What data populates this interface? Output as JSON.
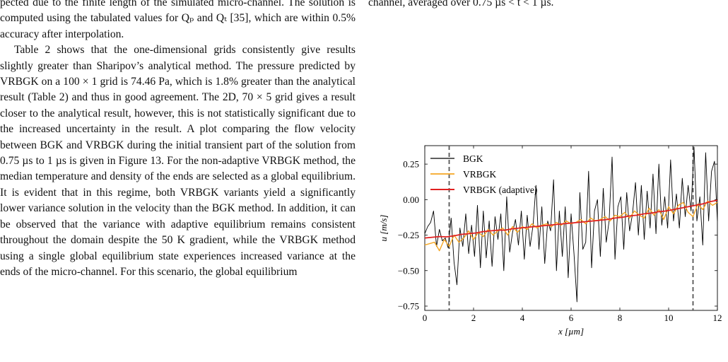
{
  "left_paragraphs": [
    "pected due to the finite length of the simulated micro-channel. The solution is computed using the tabulated values for Qₚ and Qₜ [35], which are within 0.5% accuracy after interpolation.",
    "Table 2 shows that the one-dimensional grids consistently give results slightly greater than Sharipov’s analytical method. The pressure predicted by VRBGK on a 100 × 1 grid is 74.46 Pa, which is 1.8% greater than the analytical result (Table 2) and thus in good agreement. The 2D, 70 × 5 grid gives a result closer to the analytical result, however, this is not statistically significant due to the increased uncertainty in the result. A plot comparing the flow velocity between BGK and VRBGK during the initial transient part of the solution from 0.75 µs to 1 µs is given in Figure 13. For the non-adaptive VRBGK method, the median temperature and density of the ends are selected as a global equilibrium. It is evident that in this regime, both VRBGK variants yield a significantly lower variance solution in the velocity than the BGK method. In addition, it can be observed that the variance with adaptive equilibrium remains consistent throughout the domain despite the 50 K gradient, while the VRBGK method using a single global equilibrium state experiences increased variance at the ends of the micro-channel. For this scenario, the global equilibrium"
  ],
  "right_caption_tail": "channel, averaged over 0.75 µs < t < 1 µs.",
  "chart_data": {
    "type": "line",
    "xlabel": "x [µm]",
    "ylabel": "u [m/s]",
    "xlim": [
      0,
      12
    ],
    "ylim": [
      -0.78,
      0.38
    ],
    "x_ticks": [
      "0",
      "2",
      "4",
      "6",
      "8",
      "10",
      "12"
    ],
    "y_ticks": [
      "0.25",
      "0.00",
      "−0.25",
      "−0.50",
      "−0.75"
    ],
    "vlines": [
      1,
      11
    ],
    "legend": "top-left",
    "series": [
      {
        "name": "BGK",
        "color": "#000000",
        "x": [
          0,
          0.12,
          0.24,
          0.36,
          0.48,
          0.6,
          0.72,
          0.84,
          0.96,
          1.08,
          1.2,
          1.32,
          1.44,
          1.56,
          1.68,
          1.8,
          1.92,
          2.04,
          2.16,
          2.28,
          2.4,
          2.52,
          2.64,
          2.76,
          2.88,
          3.0,
          3.12,
          3.24,
          3.36,
          3.48,
          3.6,
          3.72,
          3.84,
          3.96,
          4.08,
          4.2,
          4.32,
          4.44,
          4.56,
          4.68,
          4.8,
          4.92,
          5.04,
          5.16,
          5.28,
          5.4,
          5.52,
          5.64,
          5.76,
          5.88,
          6.0,
          6.12,
          6.24,
          6.36,
          6.48,
          6.6,
          6.72,
          6.84,
          6.96,
          7.08,
          7.2,
          7.32,
          7.44,
          7.56,
          7.68,
          7.8,
          7.92,
          8.04,
          8.16,
          8.28,
          8.4,
          8.52,
          8.64,
          8.76,
          8.88,
          9.0,
          9.12,
          9.24,
          9.36,
          9.48,
          9.6,
          9.72,
          9.84,
          9.96,
          10.08,
          10.2,
          10.32,
          10.44,
          10.56,
          10.68,
          10.8,
          10.92,
          11.04,
          11.16,
          11.28,
          11.4,
          11.52,
          11.64,
          11.76,
          11.88,
          12.0
        ],
        "values": [
          -0.24,
          -0.19,
          -0.16,
          -0.08,
          -0.33,
          -0.21,
          -0.29,
          -0.27,
          -0.34,
          -0.13,
          -0.44,
          -0.6,
          -0.2,
          -0.33,
          -0.1,
          -0.38,
          -0.18,
          -0.4,
          -0.04,
          -0.48,
          -0.08,
          -0.41,
          -0.15,
          -0.47,
          -0.12,
          -0.28,
          -0.1,
          -0.5,
          0.02,
          -0.37,
          -0.23,
          -0.14,
          -0.32,
          -0.08,
          -0.42,
          -0.11,
          -0.33,
          -0.18,
          0.1,
          -0.35,
          -0.05,
          -0.45,
          -0.15,
          -0.22,
          0.14,
          -0.5,
          -0.08,
          -0.4,
          -0.05,
          -0.55,
          -0.1,
          -0.38,
          -0.72,
          0.05,
          -0.35,
          -0.3,
          0.2,
          -0.48,
          -0.08,
          0.0,
          -0.4,
          0.08,
          -0.3,
          -0.15,
          0.3,
          -0.42,
          -0.05,
          0.02,
          -0.35,
          0.05,
          -0.22,
          -0.1,
          0.12,
          -0.25,
          0.1,
          -0.28,
          0.06,
          -0.2,
          0.18,
          -0.24,
          0.25,
          -0.18,
          0.02,
          -0.2,
          0.28,
          -0.15,
          0.04,
          -0.2,
          0.15,
          -0.12,
          0.1,
          -0.08,
          0.37,
          -0.15,
          0.02,
          -0.32,
          0.33,
          -0.15,
          0.2,
          0.27,
          -0.15
        ]
      },
      {
        "name": "VRBGK",
        "color": "#f5a623",
        "x": [
          0,
          0.2,
          0.4,
          0.6,
          0.8,
          1.0,
          1.2,
          1.4,
          1.6,
          1.8,
          2.0,
          2.2,
          2.4,
          2.6,
          2.8,
          3.0,
          3.2,
          3.4,
          3.6,
          3.8,
          4.0,
          4.2,
          4.4,
          4.6,
          4.8,
          5.0,
          5.2,
          5.4,
          5.6,
          5.8,
          6.0,
          6.2,
          6.4,
          6.6,
          6.8,
          7.0,
          7.2,
          7.4,
          7.6,
          7.8,
          8.0,
          8.2,
          8.4,
          8.6,
          8.8,
          9.0,
          9.2,
          9.4,
          9.6,
          9.8,
          10.0,
          10.2,
          10.4,
          10.6,
          10.8,
          11.0,
          11.2,
          11.4,
          11.6,
          11.8,
          12.0
        ],
        "values": [
          -0.32,
          -0.31,
          -0.3,
          -0.36,
          -0.28,
          -0.33,
          -0.25,
          -0.3,
          -0.27,
          -0.22,
          -0.28,
          -0.23,
          -0.26,
          -0.21,
          -0.25,
          -0.22,
          -0.2,
          -0.25,
          -0.19,
          -0.23,
          -0.19,
          -0.21,
          -0.17,
          -0.2,
          -0.18,
          -0.17,
          -0.19,
          -0.16,
          -0.18,
          -0.15,
          -0.17,
          -0.16,
          -0.14,
          -0.17,
          -0.13,
          -0.15,
          -0.14,
          -0.12,
          -0.15,
          -0.11,
          -0.12,
          -0.09,
          -0.13,
          -0.08,
          -0.11,
          -0.13,
          -0.06,
          -0.11,
          -0.07,
          -0.14,
          -0.05,
          -0.1,
          -0.04,
          -0.02,
          -0.09,
          -0.12,
          -0.03,
          -0.07,
          -0.01,
          -0.04,
          -0.02
        ]
      },
      {
        "name": "VRBGK (adaptive)",
        "color": "#e02020",
        "x": [
          0,
          0.3,
          0.6,
          0.9,
          1.2,
          1.5,
          1.8,
          2.1,
          2.4,
          2.7,
          3.0,
          3.3,
          3.6,
          3.9,
          4.2,
          4.5,
          4.8,
          5.1,
          5.4,
          5.7,
          6.0,
          6.3,
          6.6,
          6.9,
          7.2,
          7.5,
          7.8,
          8.1,
          8.4,
          8.7,
          9.0,
          9.3,
          9.6,
          9.9,
          10.2,
          10.5,
          10.8,
          11.1,
          11.4,
          11.7,
          12.0
        ],
        "values": [
          -0.27,
          -0.265,
          -0.26,
          -0.262,
          -0.255,
          -0.245,
          -0.24,
          -0.235,
          -0.225,
          -0.22,
          -0.215,
          -0.215,
          -0.205,
          -0.2,
          -0.195,
          -0.19,
          -0.185,
          -0.18,
          -0.175,
          -0.17,
          -0.165,
          -0.16,
          -0.155,
          -0.15,
          -0.145,
          -0.14,
          -0.13,
          -0.125,
          -0.115,
          -0.11,
          -0.1,
          -0.095,
          -0.085,
          -0.08,
          -0.07,
          -0.06,
          -0.05,
          -0.04,
          -0.03,
          -0.015,
          -0.005
        ]
      }
    ]
  }
}
